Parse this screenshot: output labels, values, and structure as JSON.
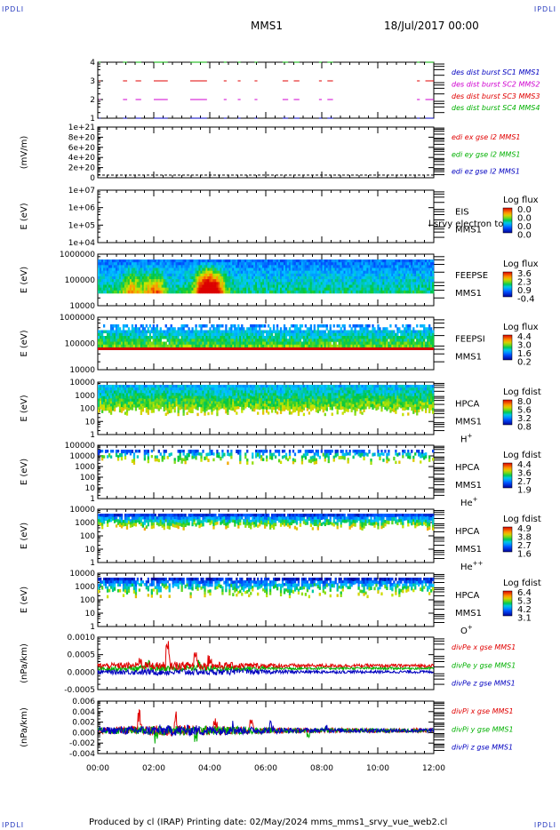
{
  "header": {
    "corner_tl": "IPDLI",
    "corner_tr": "IPDLI",
    "corner_bl": "IPDLI",
    "corner_br": "IPDLI",
    "mission": "MMS1",
    "date": "18/Jul/2017 00:00"
  },
  "footer": {
    "text": "Produced by cl (IRAP)   Printing date: 02/May/2024   mms_mms1_srvy_vue_web2.cl"
  },
  "colors": {
    "red": "#e00000",
    "green": "#00b000",
    "magenta": "#d000d0",
    "blue": "#0000c0"
  },
  "chart_data": {
    "type": "multi-panel",
    "x_ticks": [
      "00:00",
      "02:00",
      "04:00",
      "06:00",
      "08:00",
      "10:00",
      "12:00"
    ],
    "panels": [
      {
        "id": "burst",
        "type": "segments",
        "yticks": [
          "1",
          "2",
          "3",
          "4"
        ],
        "legend": [
          {
            "label": "des dist burst SC1 MMS1",
            "color": "#0000c0"
          },
          {
            "label": "des dist burst SC2 MMS2",
            "color": "#d000d0"
          },
          {
            "label": "des dist burst SC3 MMS3",
            "color": "#e00000"
          },
          {
            "label": "des dist burst SC4 MMS4",
            "color": "#00b000"
          }
        ],
        "intervals_hours": [
          [
            0.05,
            0.1
          ],
          [
            0.9,
            1.05
          ],
          [
            1.35,
            1.55
          ],
          [
            2.0,
            2.5
          ],
          [
            3.3,
            3.9
          ],
          [
            4.5,
            4.6
          ],
          [
            5.0,
            5.1
          ],
          [
            5.6,
            5.7
          ],
          [
            6.6,
            6.8
          ],
          [
            7.0,
            7.2
          ],
          [
            7.9,
            8.0
          ],
          [
            8.2,
            8.4
          ],
          [
            11.4,
            11.5
          ],
          [
            11.7,
            12.0
          ]
        ]
      },
      {
        "id": "edi",
        "type": "line",
        "ylabel": "(mV/m)",
        "yticks": [
          "0",
          "2e+20",
          "4e+20",
          "6e+20",
          "8e+20",
          "1e+21"
        ],
        "legend": [
          {
            "label": "edi ex gse l2 MMS1",
            "color": "#e00000"
          },
          {
            "label": "edi ey gse l2 MMS1",
            "color": "#00b000"
          },
          {
            "label": "edi ez gse l2 MMS1",
            "color": "#0000c0"
          }
        ]
      },
      {
        "id": "eis",
        "type": "spectrogram",
        "ylabel": "E (eV)",
        "yticks": [
          "1e+04",
          "1e+05",
          "1e+06",
          "1e+07"
        ],
        "right_labels": [
          "EIS",
          "MMS1"
        ],
        "extra_label": "l srvy electron to",
        "cb_title": "Log flux",
        "cb_values": [
          "0.0",
          "0.0",
          "0.0",
          "0.0"
        ]
      },
      {
        "id": "feepse",
        "type": "spectrogram",
        "ylabel": "E (eV)",
        "yticks": [
          "10000",
          "100000",
          "1000000"
        ],
        "right_labels": [
          "FEEPSE",
          "MMS1"
        ],
        "cb_title": "Log flux",
        "cb_values": [
          "3.6",
          "2.3",
          "0.9",
          "-0.4"
        ]
      },
      {
        "id": "feepsi",
        "type": "spectrogram",
        "ylabel": "E (eV)",
        "yticks": [
          "10000",
          "100000",
          "1000000"
        ],
        "right_labels": [
          "FEEPSI",
          "MMS1"
        ],
        "cb_title": "Log flux",
        "cb_values": [
          "4.4",
          "3.0",
          "1.6",
          "0.2"
        ]
      },
      {
        "id": "hpca_h",
        "type": "spectrogram",
        "ylabel": "E (eV)",
        "yticks": [
          "1",
          "10",
          "100",
          "1000",
          "10000"
        ],
        "right_labels": [
          "HPCA",
          "MMS1"
        ],
        "species": "H",
        "species_sup": "+",
        "cb_title": "Log fdist",
        "cb_values": [
          "8.0",
          "5.6",
          "3.2",
          "0.8"
        ]
      },
      {
        "id": "hpca_he",
        "type": "spectrogram",
        "ylabel": "E (eV)",
        "yticks": [
          "1",
          "10",
          "100",
          "1000",
          "10000",
          "100000"
        ],
        "right_labels": [
          "HPCA",
          "MMS1"
        ],
        "species": "He",
        "species_sup": "+",
        "cb_title": "Log fdist",
        "cb_values": [
          "4.4",
          "3.6",
          "2.7",
          "1.9"
        ]
      },
      {
        "id": "hpca_hepp",
        "type": "spectrogram",
        "ylabel": "E (eV)",
        "yticks": [
          "1",
          "10",
          "100",
          "1000",
          "10000"
        ],
        "right_labels": [
          "HPCA",
          "MMS1"
        ],
        "species": "He",
        "species_sup": "++",
        "cb_title": "Log fdist",
        "cb_values": [
          "4.9",
          "3.8",
          "2.7",
          "1.6"
        ]
      },
      {
        "id": "hpca_o",
        "type": "spectrogram",
        "ylabel": "E (eV)",
        "yticks": [
          "1",
          "10",
          "100",
          "1000",
          "10000"
        ],
        "right_labels": [
          "HPCA",
          "MMS1"
        ],
        "species": "O",
        "species_sup": "+",
        "cb_title": "Log fdist",
        "cb_values": [
          "6.4",
          "5.3",
          "4.2",
          "3.1"
        ]
      },
      {
        "id": "divpe",
        "type": "line",
        "ylabel": "(nPa/km)",
        "yticks": [
          "-0.0005",
          "0.0000",
          "0.0005",
          "0.0010"
        ],
        "ylim": [
          -0.0007,
          0.0011
        ],
        "legend": [
          {
            "label": "divPe x gse MMS1",
            "color": "#e00000"
          },
          {
            "label": "divPe y gse MMS1",
            "color": "#00b000"
          },
          {
            "label": "divPe z gse MMS1",
            "color": "#0000c0"
          }
        ]
      },
      {
        "id": "divpi",
        "type": "line",
        "ylabel": "(nPa/km)",
        "yticks": [
          "-0.004",
          "-0.002",
          "0.000",
          "0.002",
          "0.004",
          "0.006"
        ],
        "ylim": [
          -0.0052,
          0.0066
        ],
        "legend": [
          {
            "label": "divPi x gse MMS1",
            "color": "#e00000"
          },
          {
            "label": "divPi y gse MMS1",
            "color": "#00b000"
          },
          {
            "label": "divPi z gse MMS1",
            "color": "#0000c0"
          }
        ]
      }
    ]
  }
}
